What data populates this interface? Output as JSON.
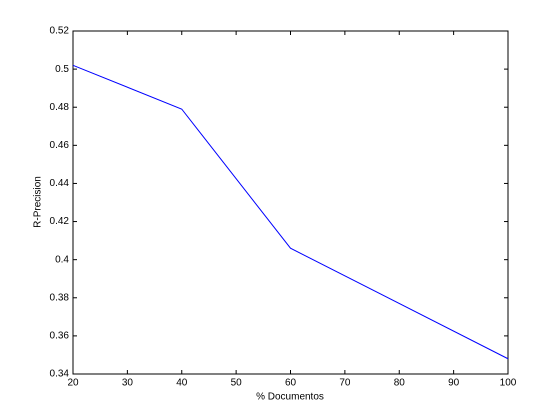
{
  "chart_data": {
    "type": "line",
    "x": [
      20,
      40,
      60,
      100
    ],
    "values": [
      0.502,
      0.479,
      0.406,
      0.348
    ],
    "color": "#0000ff",
    "xlabel": "% Documentos",
    "ylabel": "R-Precision",
    "xlim": [
      20,
      100
    ],
    "xticks": [
      20,
      30,
      40,
      50,
      60,
      70,
      80,
      90,
      100
    ],
    "ylim": [
      0.34,
      0.52
    ],
    "yticks": [
      0.34,
      0.36,
      0.38,
      0.4,
      0.42,
      0.44,
      0.46,
      0.48,
      0.5,
      0.52
    ],
    "grid": false
  }
}
